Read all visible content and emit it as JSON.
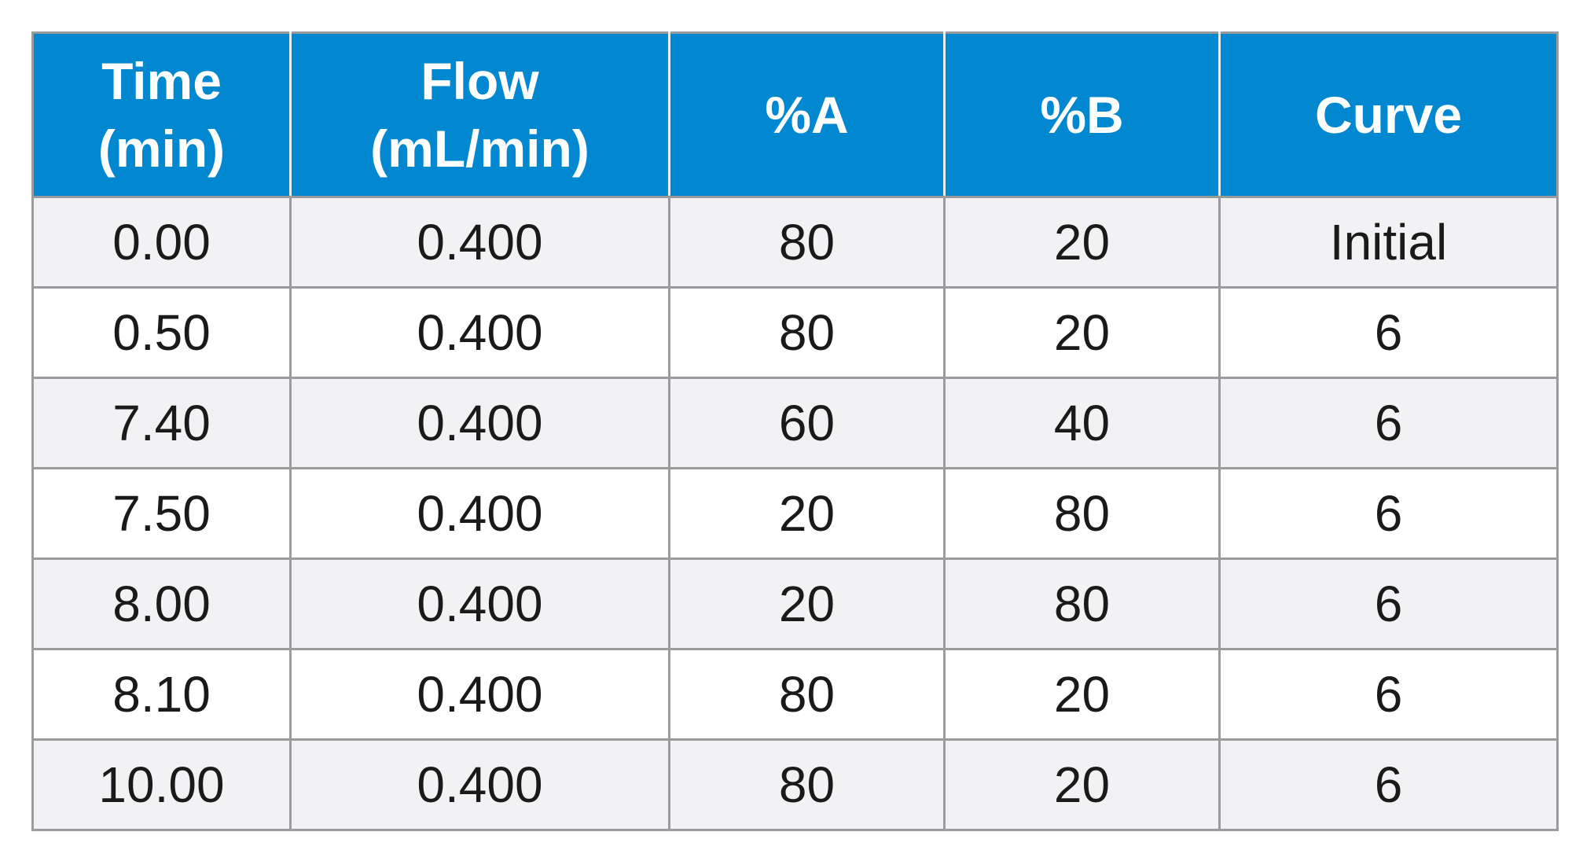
{
  "table": {
    "headers": [
      {
        "lines": [
          "Time",
          "(min)"
        ]
      },
      {
        "lines": [
          "Flow",
          "(mL/min)"
        ]
      },
      {
        "lines": [
          "%A"
        ]
      },
      {
        "lines": [
          "%B"
        ]
      },
      {
        "lines": [
          "Curve"
        ]
      }
    ],
    "rows": [
      [
        "0.00",
        "0.400",
        "80",
        "20",
        "Initial"
      ],
      [
        "0.50",
        "0.400",
        "80",
        "20",
        "6"
      ],
      [
        "7.40",
        "0.400",
        "60",
        "40",
        "6"
      ],
      [
        "7.50",
        "0.400",
        "20",
        "80",
        "6"
      ],
      [
        "8.00",
        "0.400",
        "20",
        "80",
        "6"
      ],
      [
        "8.10",
        "0.400",
        "80",
        "20",
        "6"
      ],
      [
        "10.00",
        "0.400",
        "80",
        "20",
        "6"
      ]
    ]
  },
  "colors": {
    "header_bg": "#0288d1",
    "header_text": "#ffffff",
    "row_alt_bg": "#f2f2f4",
    "row_bg": "#ffffff",
    "border": "#9a9b9d"
  }
}
